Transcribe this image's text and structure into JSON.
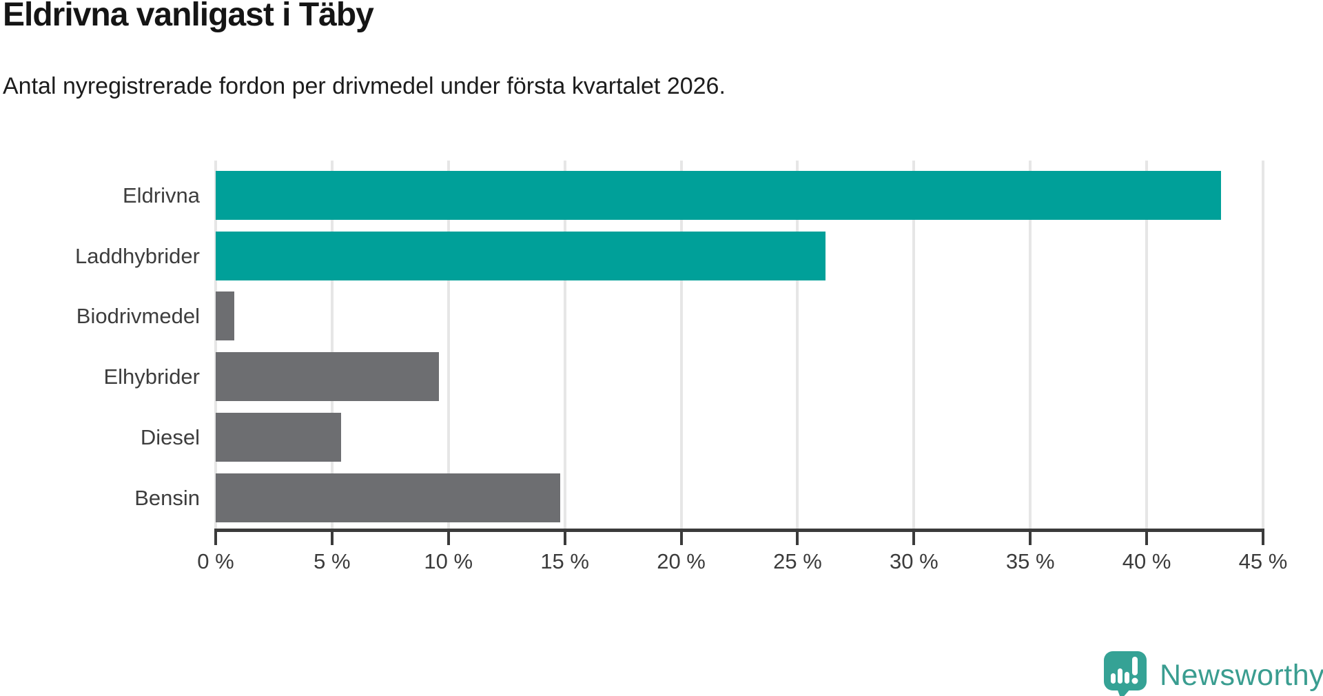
{
  "chart_data": {
    "type": "bar",
    "orientation": "horizontal",
    "title": "Eldrivna vanligast i Täby",
    "subtitle": "Antal nyregistrerade fordon per drivmedel under första kvartalet 2026.",
    "categories": [
      "Eldrivna",
      "Laddhybrider",
      "Biodrivmedel",
      "Elhybrider",
      "Diesel",
      "Bensin"
    ],
    "values": [
      43.2,
      26.2,
      0.8,
      9.6,
      5.4,
      14.8
    ],
    "unit": "%",
    "xlim": [
      0,
      45
    ],
    "xtick_step": 5,
    "xtick_labels": [
      "0 %",
      "5 %",
      "10 %",
      "15 %",
      "20 %",
      "25 %",
      "30 %",
      "35 %",
      "40 %",
      "45 %"
    ],
    "grid": "vertical",
    "bar_colors": [
      "#00a099",
      "#00a099",
      "#6d6e71",
      "#6d6e71",
      "#6d6e71",
      "#6d6e71"
    ],
    "highlight_color": "#00a099",
    "default_color": "#6d6e71"
  },
  "footer": {
    "brand": "Newsworthy",
    "brand_color": "#3a9d90",
    "logo_color": "#35a295"
  }
}
